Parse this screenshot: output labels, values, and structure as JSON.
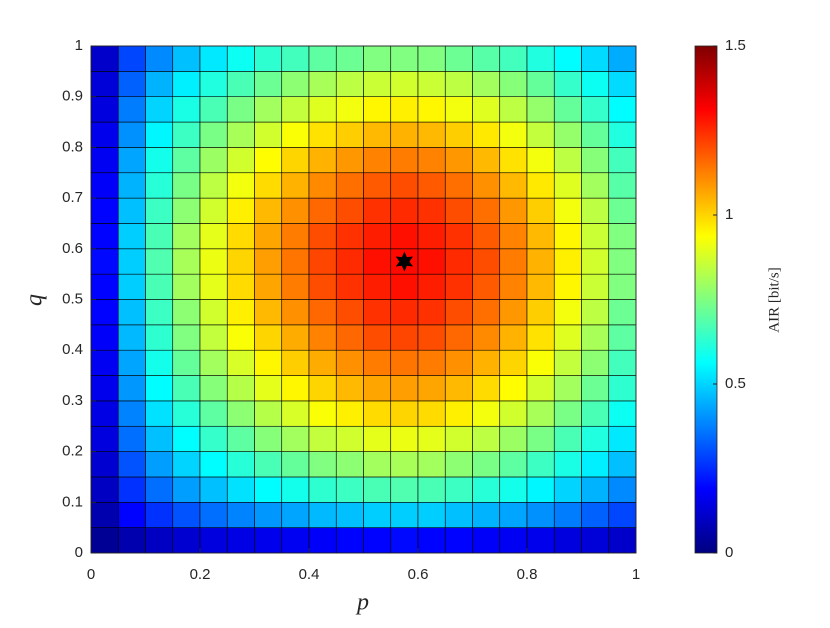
{
  "chart_data": {
    "type": "heatmap",
    "colormap": "jet",
    "xlabel": "p",
    "ylabel": "q",
    "colorbar_label": "AIR [bit/s]",
    "xlim": [
      0,
      1
    ],
    "ylim": [
      0,
      1
    ],
    "xticks": [
      0,
      0.2,
      0.4,
      0.6,
      0.8,
      1
    ],
    "yticks": [
      0,
      0.1,
      0.2,
      0.3,
      0.4,
      0.5,
      0.6,
      0.7,
      0.8,
      0.9,
      1
    ],
    "clim": [
      0,
      1.5
    ],
    "cticks": [
      0,
      0.5,
      1,
      1.5
    ],
    "x": [
      0.025,
      0.075,
      0.125,
      0.175,
      0.225,
      0.275,
      0.325,
      0.375,
      0.425,
      0.475,
      0.525,
      0.575,
      0.625,
      0.675,
      0.725,
      0.775,
      0.825,
      0.875,
      0.925,
      0.975
    ],
    "y": [
      0.025,
      0.075,
      0.125,
      0.175,
      0.225,
      0.275,
      0.325,
      0.375,
      0.425,
      0.475,
      0.525,
      0.575,
      0.625,
      0.675,
      0.725,
      0.775,
      0.825,
      0.875,
      0.925,
      0.975
    ],
    "z": [
      [
        0.03,
        0.07,
        0.1,
        0.12,
        0.14,
        0.15,
        0.16,
        0.17,
        0.18,
        0.19,
        0.19,
        0.2,
        0.19,
        0.19,
        0.18,
        0.17,
        0.16,
        0.14,
        0.13,
        0.11
      ],
      [
        0.07,
        0.19,
        0.26,
        0.31,
        0.35,
        0.38,
        0.41,
        0.43,
        0.46,
        0.47,
        0.49,
        0.49,
        0.49,
        0.47,
        0.45,
        0.43,
        0.4,
        0.37,
        0.33,
        0.29
      ],
      [
        0.1,
        0.26,
        0.35,
        0.42,
        0.47,
        0.52,
        0.56,
        0.59,
        0.63,
        0.65,
        0.67,
        0.68,
        0.67,
        0.65,
        0.62,
        0.59,
        0.55,
        0.5,
        0.45,
        0.39
      ],
      [
        0.12,
        0.31,
        0.42,
        0.5,
        0.56,
        0.62,
        0.67,
        0.71,
        0.75,
        0.77,
        0.8,
        0.81,
        0.8,
        0.77,
        0.74,
        0.7,
        0.65,
        0.6,
        0.54,
        0.47
      ],
      [
        0.14,
        0.35,
        0.47,
        0.56,
        0.64,
        0.7,
        0.76,
        0.8,
        0.85,
        0.87,
        0.9,
        0.91,
        0.9,
        0.87,
        0.84,
        0.79,
        0.74,
        0.67,
        0.61,
        0.53
      ],
      [
        0.15,
        0.38,
        0.52,
        0.62,
        0.7,
        0.77,
        0.83,
        0.88,
        0.93,
        0.96,
        0.99,
        1.0,
        0.99,
        0.96,
        0.92,
        0.87,
        0.81,
        0.74,
        0.67,
        0.58
      ],
      [
        0.16,
        0.41,
        0.56,
        0.67,
        0.76,
        0.83,
        0.9,
        0.95,
        1.0,
        1.04,
        1.07,
        1.08,
        1.07,
        1.04,
        0.99,
        0.94,
        0.87,
        0.8,
        0.72,
        0.63
      ],
      [
        0.17,
        0.43,
        0.59,
        0.71,
        0.8,
        0.88,
        0.95,
        1.01,
        1.06,
        1.1,
        1.13,
        1.14,
        1.13,
        1.1,
        1.05,
        1.0,
        0.93,
        0.85,
        0.77,
        0.66
      ],
      [
        0.18,
        0.46,
        0.63,
        0.75,
        0.85,
        0.93,
        1.0,
        1.06,
        1.12,
        1.16,
        1.2,
        1.21,
        1.2,
        1.16,
        1.11,
        1.05,
        0.98,
        0.89,
        0.81,
        0.7
      ],
      [
        0.19,
        0.47,
        0.65,
        0.77,
        0.87,
        0.96,
        1.04,
        1.1,
        1.16,
        1.2,
        1.24,
        1.25,
        1.24,
        1.2,
        1.15,
        1.09,
        1.01,
        0.92,
        0.84,
        0.72
      ],
      [
        0.19,
        0.49,
        0.67,
        0.8,
        0.9,
        0.99,
        1.07,
        1.13,
        1.2,
        1.24,
        1.27,
        1.29,
        1.27,
        1.24,
        1.18,
        1.12,
        1.04,
        0.95,
        0.86,
        0.75
      ],
      [
        0.2,
        0.49,
        0.68,
        0.81,
        0.91,
        1.0,
        1.08,
        1.14,
        1.21,
        1.25,
        1.29,
        1.3,
        1.29,
        1.25,
        1.2,
        1.13,
        1.05,
        0.96,
        0.87,
        0.75
      ],
      [
        0.19,
        0.49,
        0.67,
        0.8,
        0.9,
        0.99,
        1.07,
        1.13,
        1.2,
        1.24,
        1.27,
        1.29,
        1.27,
        1.24,
        1.18,
        1.12,
        1.04,
        0.95,
        0.86,
        0.75
      ],
      [
        0.19,
        0.47,
        0.65,
        0.77,
        0.87,
        0.96,
        1.04,
        1.1,
        1.16,
        1.2,
        1.24,
        1.25,
        1.24,
        1.2,
        1.15,
        1.09,
        1.01,
        0.92,
        0.84,
        0.72
      ],
      [
        0.18,
        0.45,
        0.62,
        0.74,
        0.84,
        0.92,
        0.99,
        1.05,
        1.11,
        1.15,
        1.18,
        1.2,
        1.18,
        1.15,
        1.1,
        1.04,
        0.97,
        0.89,
        0.8,
        0.69
      ],
      [
        0.17,
        0.43,
        0.59,
        0.7,
        0.79,
        0.87,
        0.94,
        1.0,
        1.05,
        1.09,
        1.12,
        1.13,
        1.12,
        1.09,
        1.04,
        0.98,
        0.92,
        0.84,
        0.76,
        0.66
      ],
      [
        0.16,
        0.4,
        0.55,
        0.65,
        0.74,
        0.81,
        0.87,
        0.93,
        0.98,
        1.01,
        1.04,
        1.05,
        1.04,
        1.01,
        0.97,
        0.92,
        0.85,
        0.78,
        0.71,
        0.61
      ],
      [
        0.14,
        0.37,
        0.5,
        0.6,
        0.67,
        0.74,
        0.8,
        0.85,
        0.89,
        0.92,
        0.95,
        0.96,
        0.95,
        0.92,
        0.89,
        0.84,
        0.78,
        0.71,
        0.64,
        0.56
      ],
      [
        0.13,
        0.33,
        0.45,
        0.54,
        0.61,
        0.67,
        0.72,
        0.77,
        0.81,
        0.84,
        0.86,
        0.87,
        0.86,
        0.84,
        0.8,
        0.76,
        0.71,
        0.64,
        0.58,
        0.51
      ],
      [
        0.11,
        0.29,
        0.39,
        0.47,
        0.53,
        0.58,
        0.63,
        0.66,
        0.7,
        0.72,
        0.75,
        0.75,
        0.75,
        0.72,
        0.69,
        0.66,
        0.61,
        0.56,
        0.51,
        0.44
      ]
    ],
    "marker": {
      "x": 0.575,
      "y": 0.575
    }
  }
}
